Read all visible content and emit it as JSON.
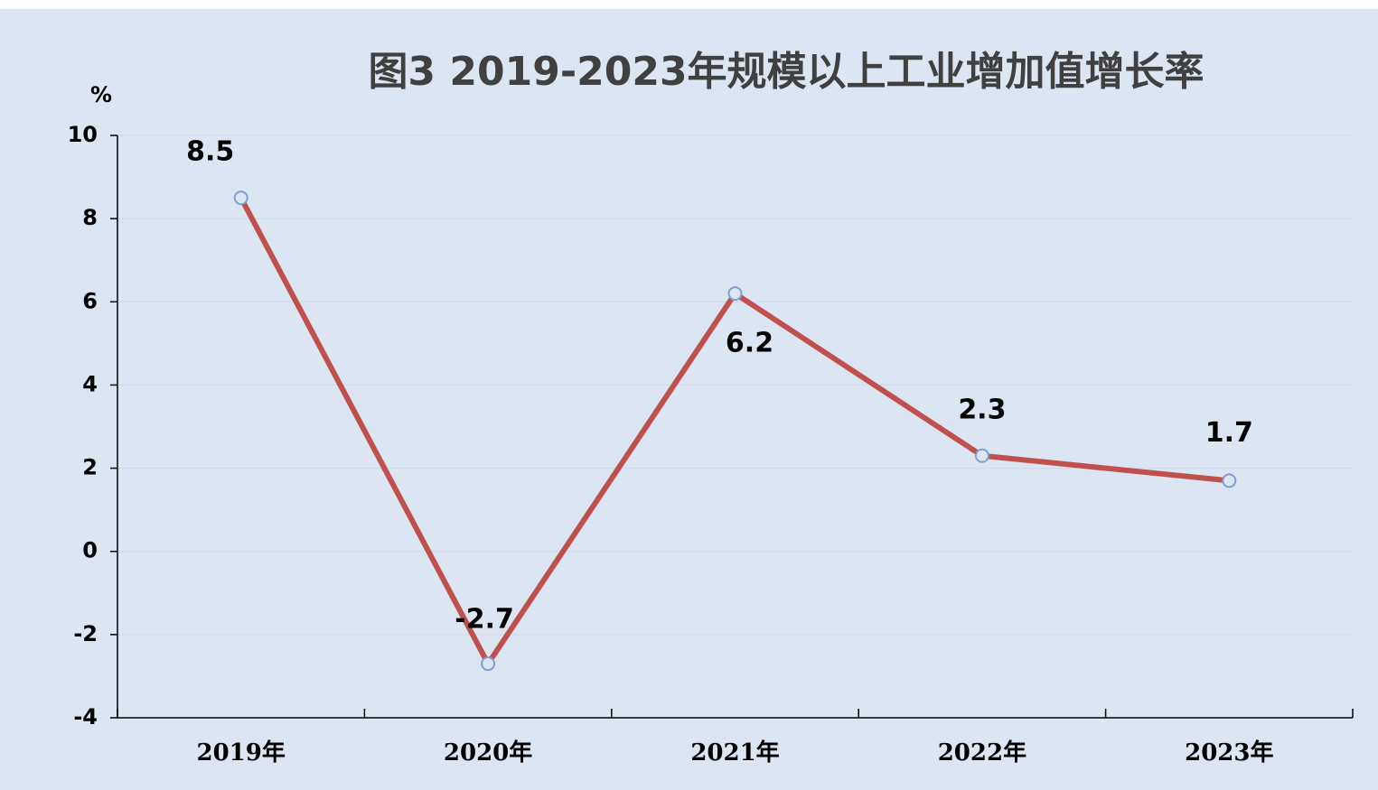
{
  "chart_data": {
    "type": "line",
    "title": "图3 2019-2023年规模以上工业增加值增长率",
    "y_unit": "%",
    "categories": [
      "2019年",
      "2020年",
      "2021年",
      "2022年",
      "2023年"
    ],
    "series": [
      {
        "color": "#c0504d",
        "values": [
          8.5,
          -2.7,
          6.2,
          2.3,
          1.7
        ]
      }
    ],
    "ylim": [
      -4,
      10
    ],
    "yticks": [
      -4,
      -2,
      0,
      2,
      4,
      6,
      8,
      10
    ],
    "grid": true
  }
}
